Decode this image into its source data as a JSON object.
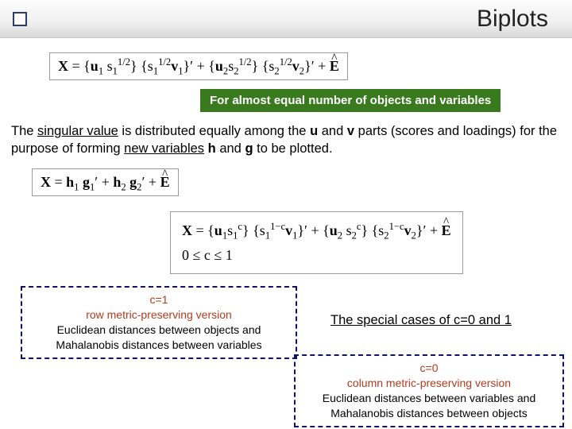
{
  "slide": {
    "title": "Biplots",
    "green_banner": "For almost equal number of objects and variables",
    "paragraph_pre": "The ",
    "paragraph_u1": "singular value",
    "paragraph_mid1": " is distributed equally among the ",
    "paragraph_b1": "u",
    "paragraph_mid2": " and ",
    "paragraph_b2": "v",
    "paragraph_mid3": " parts (scores and loadings) for the purpose of forming ",
    "paragraph_u2": "new variables",
    "paragraph_mid4": " ",
    "paragraph_b3": "h",
    "paragraph_mid5": " and ",
    "paragraph_b4": "g",
    "paragraph_mid6": " to be plotted."
  },
  "formulas": {
    "eq1_html": "<b>X</b> = {<b>u</b><sub>1</sub> s<sub>1</sub><sup>1/2</sup>} {s<sub>1</sub><sup>1/2</sup><b>v</b><sub>1</sub>}&prime; + {<b>u</b><sub>2</sub>s<sub>2</sub><sup>1/2</sup>} {s<sub>2</sub><sup>1/2</sup><b>v</b><sub>2</sub>}&prime; + <span class=\"hatE\"><b>E</b></span>",
    "eq2_html": "<b>X</b> = <b>h</b><sub>1</sub> <b>g</b><sub>1</sub>&prime; + <b>h</b><sub>2</sub> <b>g</b><sub>2</sub>&prime; + <span class=\"hatE\"><b>E</b></span>",
    "eq3_line1_html": "<b>X</b> = {<b>u</b><sub>1</sub>s<sub>1</sub><sup>c</sup>} {s<sub>1</sub><sup>1&minus;c</sup><b>v</b><sub>1</sub>}&prime; + {<b>u</b><sub>2</sub> s<sub>2</sub><sup>c</sup>} {s<sub>2</sub><sup>1&minus;c</sup><b>v</b><sub>2</sub>}&prime; + <span class=\"hatE\"><b>E</b></span>",
    "eq3_line2_html": "0 &le; c &le; 1"
  },
  "boxes": {
    "c1": {
      "hdr": "c=1",
      "sub": "row metric-preserving version",
      "line1": "Euclidean distances between objects and",
      "line2": "Mahalanobis distances between variables"
    },
    "special": "The special cases of c=0 and 1",
    "c0": {
      "hdr": "c=0",
      "sub": "column metric-preserving version",
      "line1": "Euclidean distances between variables and",
      "line2": "Mahalanobis distances between objects"
    }
  },
  "colors": {
    "green_banner_bg": "#3a7a1f",
    "dashed_border": "#0a1568",
    "red_text": "#b53a1f",
    "title_square_border": "#2a3a6a"
  }
}
